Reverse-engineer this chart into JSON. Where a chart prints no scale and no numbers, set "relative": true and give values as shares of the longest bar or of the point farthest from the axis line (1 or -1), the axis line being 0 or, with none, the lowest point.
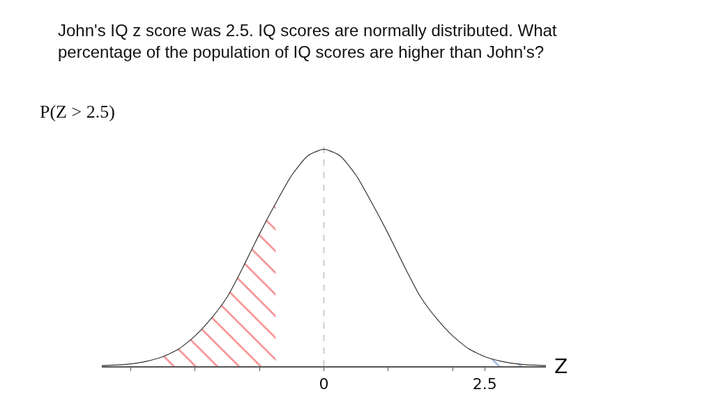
{
  "chart_data": {
    "type": "line",
    "relative": true,
    "title": "John's IQ z score was 2.5. IQ scores are normally distributed. What percentage of the population of IQ scores are higher than John's?",
    "subtitle": "P(Z > 2.5)",
    "xlabel": "Z",
    "x": [
      -3.45,
      -3.25,
      -3,
      -2.75,
      -2.5,
      -2.25,
      -2,
      -1.75,
      -1.5,
      -1.25,
      -1,
      -0.75,
      -0.5,
      -0.25,
      0,
      0.25,
      0.5,
      0.75,
      1,
      1.25,
      1.5,
      1.75,
      2,
      2.25,
      2.5,
      2.75,
      3,
      3.25,
      3.45
    ],
    "series": [
      {
        "color": "#333333",
        "values": [
          0.003,
          0.005,
          0.011,
          0.023,
          0.044,
          0.08,
          0.14,
          0.22,
          0.32,
          0.46,
          0.61,
          0.75,
          0.88,
          0.97,
          1,
          0.97,
          0.88,
          0.75,
          0.61,
          0.46,
          0.32,
          0.22,
          0.14,
          0.08,
          0.044,
          0.023,
          0.011,
          0.005,
          0.003
        ]
      },
      {
        "type": "area",
        "color": "#ee2222",
        "x": [
          -2.5,
          -2.25,
          -2,
          -1.75,
          -1.5,
          -1.25,
          -1,
          -0.75
        ],
        "values": [
          0.044,
          0.08,
          0.14,
          0.22,
          0.32,
          0.46,
          0.61,
          0.75
        ]
      },
      {
        "type": "area",
        "color": "#3a78c8",
        "x": [
          2.5,
          2.75,
          3,
          3.25
        ],
        "values": [
          0.044,
          0.023,
          0.011,
          0.005
        ]
      }
    ],
    "xlim": [
      -3.45,
      3.45
    ],
    "xticks": [
      {
        "value": -3,
        "label": null
      },
      {
        "value": -2,
        "label": null
      },
      {
        "value": -1,
        "label": null
      },
      0,
      {
        "value": 1,
        "label": null
      },
      {
        "value": 2,
        "label": null
      },
      2.5
    ],
    "ref_lines": [
      {
        "axis": "x",
        "value": 0,
        "color": "#aaaaaa",
        "line_style": "dashed"
      }
    ],
    "grid": false
  }
}
